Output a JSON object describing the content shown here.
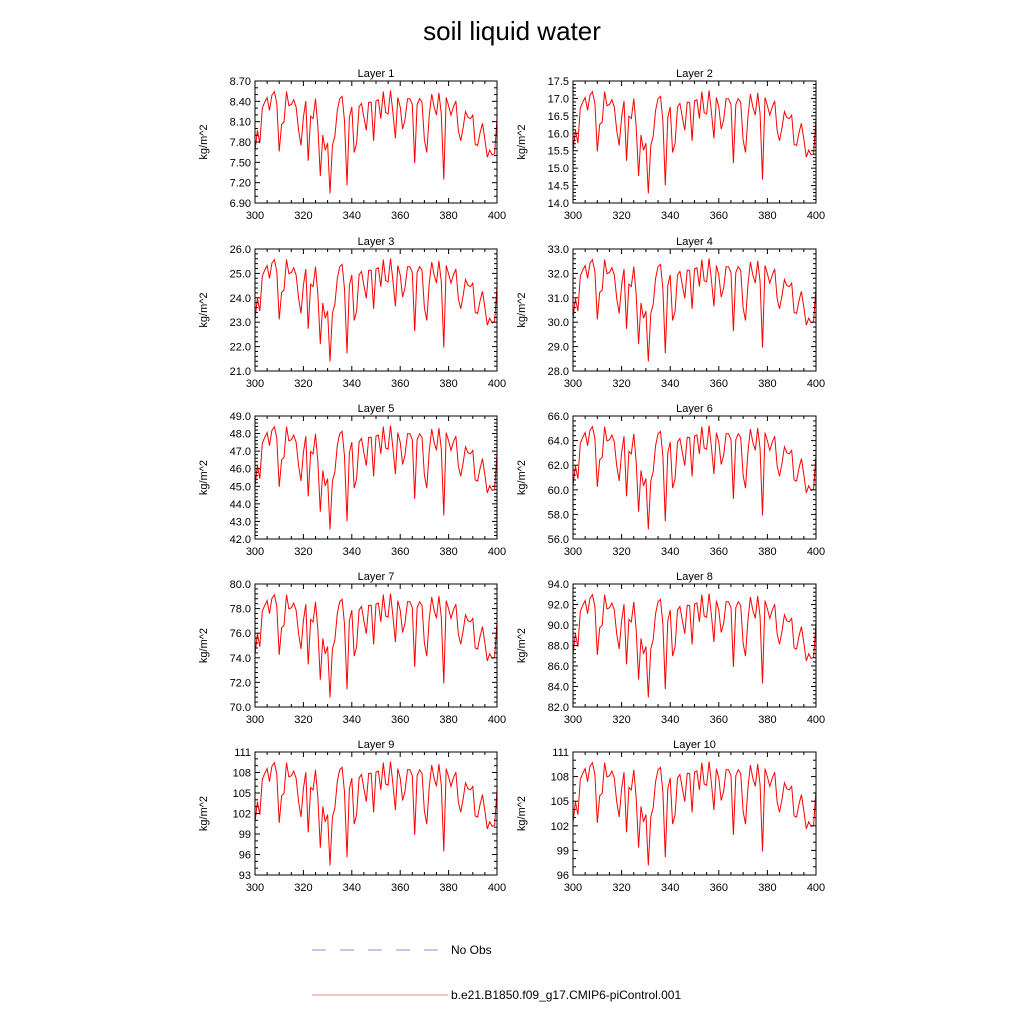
{
  "title": "soil liquid water",
  "colors": {
    "model": "#ff0000",
    "obs": "#8c8cd0",
    "axis": "#000000"
  },
  "legend": [
    {
      "label": "No Obs",
      "style": "dashed",
      "color": "#8c8cd0"
    },
    {
      "label": "b.e21.B1850.f09_g17.CMIP6-piControl.001",
      "style": "solid",
      "color": "#ff8080"
    }
  ],
  "chart_data": [
    {
      "type": "line",
      "title": "Layer 1",
      "ylabel": "kg/m^2",
      "xlim": [
        300,
        400
      ],
      "ylim": [
        6.9,
        8.7
      ],
      "xticks": [
        300,
        320,
        340,
        360,
        380,
        400
      ],
      "xtick_labels": [
        "300",
        "320",
        "340",
        "360",
        "380",
        "400"
      ],
      "yticks": [
        6.9,
        7.2,
        7.5,
        7.8,
        8.1,
        8.4,
        8.7
      ],
      "ytick_labels": [
        "6.90",
        "7.20",
        "7.50",
        "7.80",
        "8.10",
        "8.40",
        "8.70"
      ],
      "yminor": 2
    },
    {
      "type": "line",
      "title": "Layer 2",
      "ylabel": "kg/m^2",
      "xlim": [
        300,
        400
      ],
      "ylim": [
        14.0,
        17.5
      ],
      "xticks": [
        300,
        320,
        340,
        360,
        380,
        400
      ],
      "xtick_labels": [
        "300",
        "320",
        "340",
        "360",
        "380",
        "400"
      ],
      "yticks": [
        14,
        14.5,
        15,
        15.5,
        16,
        16.5,
        17,
        17.5
      ],
      "ytick_labels": [
        "14.0",
        "14.5",
        "15.0",
        "15.5",
        "16.0",
        "16.5",
        "17.0",
        "17.5"
      ],
      "yminor": 4
    },
    {
      "type": "line",
      "title": "Layer 3",
      "ylabel": "kg/m^2",
      "xlim": [
        300,
        400
      ],
      "ylim": [
        21.0,
        26.0
      ],
      "xticks": [
        300,
        320,
        340,
        360,
        380,
        400
      ],
      "xtick_labels": [
        "300",
        "320",
        "340",
        "360",
        "380",
        "400"
      ],
      "yticks": [
        21,
        22,
        23,
        24,
        25,
        26
      ],
      "ytick_labels": [
        "21.0",
        "22.0",
        "23.0",
        "24.0",
        "25.0",
        "26.0"
      ],
      "yminor": 4
    },
    {
      "type": "line",
      "title": "Layer 4",
      "ylabel": "kg/m^2",
      "xlim": [
        300,
        400
      ],
      "ylim": [
        28.0,
        33.0
      ],
      "xticks": [
        300,
        320,
        340,
        360,
        380,
        400
      ],
      "xtick_labels": [
        "300",
        "320",
        "340",
        "360",
        "380",
        "400"
      ],
      "yticks": [
        28,
        29,
        30,
        31,
        32,
        33
      ],
      "ytick_labels": [
        "28.0",
        "29.0",
        "30.0",
        "31.0",
        "32.0",
        "33.0"
      ],
      "yminor": 4
    },
    {
      "type": "line",
      "title": "Layer 5",
      "ylabel": "kg/m^2",
      "xlim": [
        300,
        400
      ],
      "ylim": [
        42.0,
        49.0
      ],
      "xticks": [
        300,
        320,
        340,
        360,
        380,
        400
      ],
      "xtick_labels": [
        "300",
        "320",
        "340",
        "360",
        "380",
        "400"
      ],
      "yticks": [
        42,
        43,
        44,
        45,
        46,
        47,
        48,
        49
      ],
      "ytick_labels": [
        "42.0",
        "43.0",
        "44.0",
        "45.0",
        "46.0",
        "47.0",
        "48.0",
        "49.0"
      ],
      "yminor": 4
    },
    {
      "type": "line",
      "title": "Layer 6",
      "ylabel": "kg/m^2",
      "xlim": [
        300,
        400
      ],
      "ylim": [
        56.0,
        66.0
      ],
      "xticks": [
        300,
        320,
        340,
        360,
        380,
        400
      ],
      "xtick_labels": [
        "300",
        "320",
        "340",
        "360",
        "380",
        "400"
      ],
      "yticks": [
        56,
        58,
        60,
        62,
        64,
        66
      ],
      "ytick_labels": [
        "56.0",
        "58.0",
        "60.0",
        "62.0",
        "64.0",
        "66.0"
      ],
      "yminor": 4
    },
    {
      "type": "line",
      "title": "Layer 7",
      "ylabel": "kg/m^2",
      "xlim": [
        300,
        400
      ],
      "ylim": [
        70.0,
        80.0
      ],
      "xticks": [
        300,
        320,
        340,
        360,
        380,
        400
      ],
      "xtick_labels": [
        "300",
        "320",
        "340",
        "360",
        "380",
        "400"
      ],
      "yticks": [
        70,
        72,
        74,
        76,
        78,
        80
      ],
      "ytick_labels": [
        "70.0",
        "72.0",
        "74.0",
        "76.0",
        "78.0",
        "80.0"
      ],
      "yminor": 4
    },
    {
      "type": "line",
      "title": "Layer 8",
      "ylabel": "kg/m^2",
      "xlim": [
        300,
        400
      ],
      "ylim": [
        82.0,
        94.0
      ],
      "xticks": [
        300,
        320,
        340,
        360,
        380,
        400
      ],
      "xtick_labels": [
        "300",
        "320",
        "340",
        "360",
        "380",
        "400"
      ],
      "yticks": [
        82,
        84,
        86,
        88,
        90,
        92,
        94
      ],
      "ytick_labels": [
        "82.0",
        "84.0",
        "86.0",
        "88.0",
        "90.0",
        "92.0",
        "94.0"
      ],
      "yminor": 4
    },
    {
      "type": "line",
      "title": "Layer 9",
      "ylabel": "kg/m^2",
      "xlim": [
        300,
        400
      ],
      "ylim": [
        93,
        111
      ],
      "xticks": [
        300,
        320,
        340,
        360,
        380,
        400
      ],
      "xtick_labels": [
        "300",
        "320",
        "340",
        "360",
        "380",
        "400"
      ],
      "yticks": [
        93,
        96,
        99,
        102,
        105,
        108,
        111
      ],
      "ytick_labels": [
        "93",
        "96",
        "99",
        "102",
        "105",
        "108",
        "111"
      ],
      "yminor": 2
    },
    {
      "type": "line",
      "title": "Layer 10",
      "ylabel": "kg/m^2",
      "xlim": [
        300,
        400
      ],
      "ylim": [
        96,
        111
      ],
      "xticks": [
        300,
        320,
        340,
        360,
        380,
        400
      ],
      "xtick_labels": [
        "300",
        "320",
        "340",
        "360",
        "380",
        "400"
      ],
      "yticks": [
        96,
        99,
        102,
        105,
        108,
        111
      ],
      "ytick_labels": [
        "96",
        "99",
        "102",
        "105",
        "108",
        "111"
      ],
      "yminor": 2
    }
  ],
  "series_template": {
    "name": "b.e21.B1850.f09_g17.CMIP6-piControl.001",
    "x": [
      300,
      301,
      302,
      303,
      304,
      305,
      306,
      307,
      308,
      309,
      310,
      311,
      312,
      313,
      314,
      315,
      316,
      317,
      318,
      319,
      320,
      321,
      322,
      323,
      324,
      325,
      326,
      327,
      328,
      329,
      330,
      331,
      332,
      333,
      334,
      335,
      336,
      337,
      338,
      339,
      340,
      341,
      342,
      343,
      344,
      345,
      346,
      347,
      348,
      349,
      350,
      351,
      352,
      353,
      354,
      355,
      356,
      357,
      358,
      359,
      360,
      361,
      362,
      363,
      364,
      365,
      366,
      367,
      368,
      369,
      370,
      371,
      372,
      373,
      374,
      375,
      376,
      377,
      378,
      379,
      380,
      381,
      382,
      383,
      384,
      385,
      386,
      387,
      388,
      389,
      390,
      391,
      392,
      393,
      394,
      395,
      396,
      397,
      398,
      399,
      400
    ],
    "y_normalized_comment": "",
    "shape": [
      0.42,
      0.6,
      0.49,
      0.79,
      0.84,
      0.88,
      0.77,
      0.9,
      0.93,
      0.83,
      0.42,
      0.65,
      0.67,
      0.93,
      0.81,
      0.82,
      0.86,
      0.8,
      0.6,
      0.47,
      0.71,
      0.85,
      0.34,
      0.72,
      0.7,
      0.87,
      0.63,
      0.21,
      0.56,
      0.43,
      0.49,
      0.06,
      0.47,
      0.55,
      0.77,
      0.87,
      0.89,
      0.68,
      0.13,
      0.71,
      0.8,
      0.41,
      0.49,
      0.8,
      0.83,
      0.71,
      0.6,
      0.84,
      0.84,
      0.51,
      0.85,
      0.86,
      0.7,
      0.93,
      0.75,
      0.74,
      0.94,
      0.75,
      0.53,
      0.88,
      0.8,
      0.61,
      0.69,
      0.87,
      0.87,
      0.82,
      0.32,
      0.82,
      0.87,
      0.84,
      0.52,
      0.41,
      0.72,
      0.91,
      0.8,
      0.73,
      0.92,
      0.74,
      0.18,
      0.88,
      0.81,
      0.73,
      0.8,
      0.85,
      0.6,
      0.51,
      0.62,
      0.76,
      0.71,
      0.7,
      0.73,
      0.48,
      0.47,
      0.58,
      0.66,
      0.52,
      0.37,
      0.43,
      0.39,
      0.4,
      0.7
    ]
  }
}
